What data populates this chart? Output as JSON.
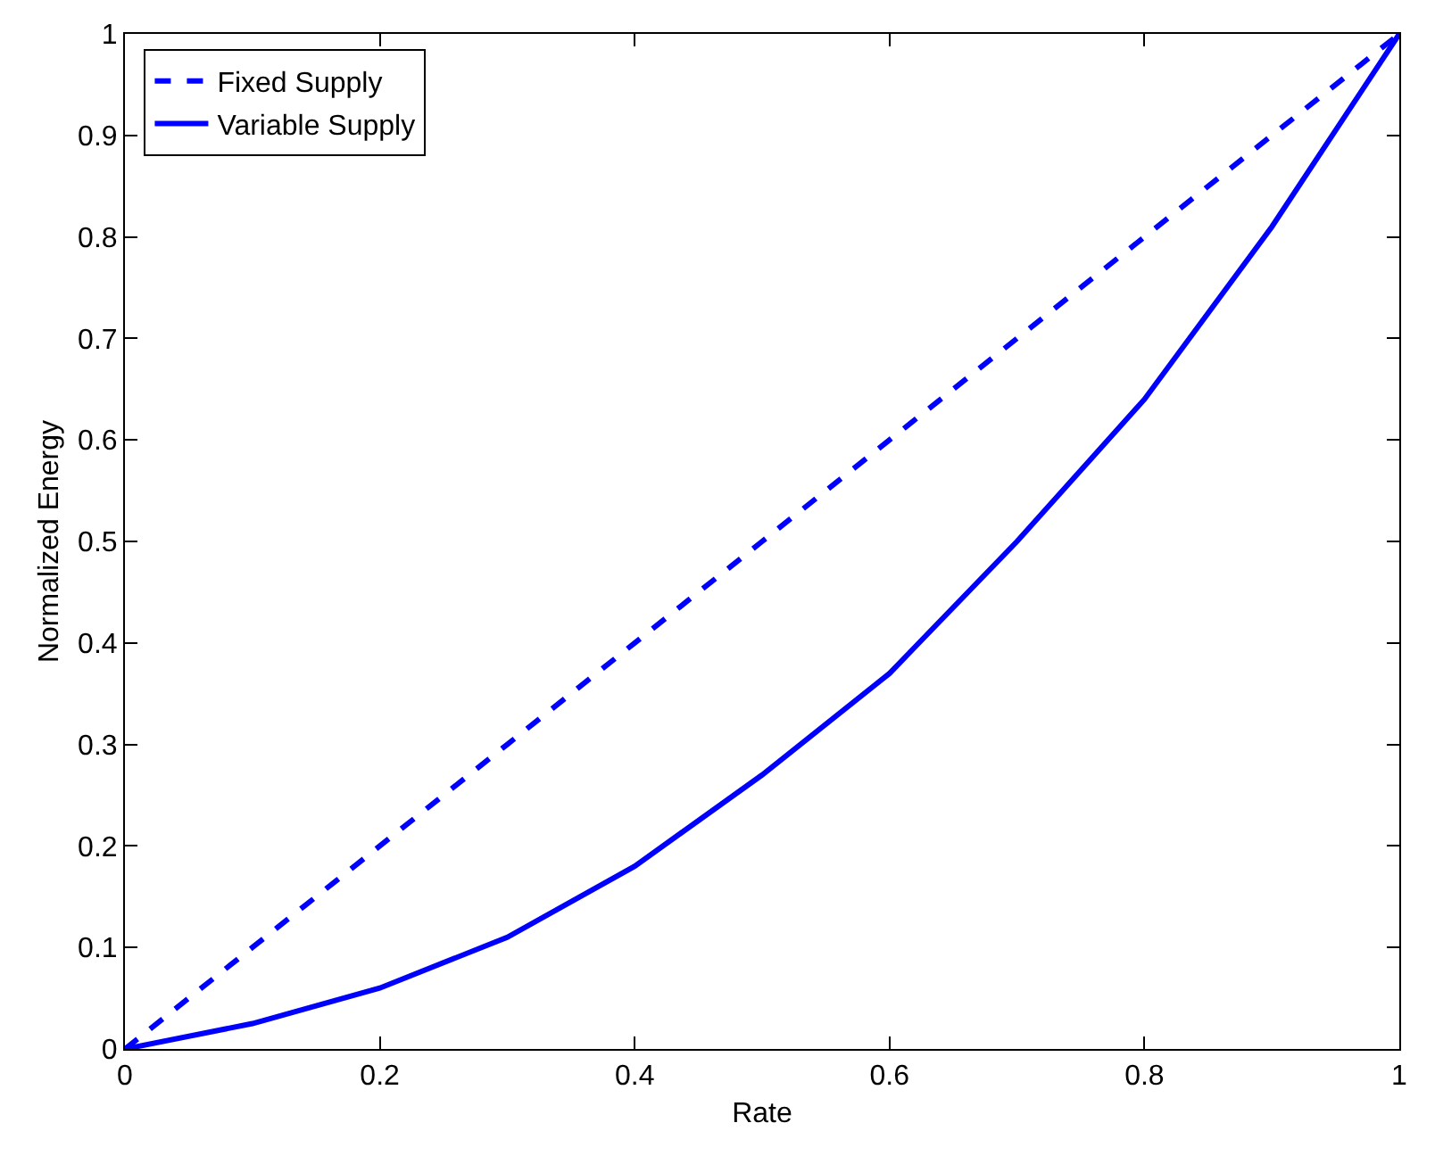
{
  "chart_data": {
    "type": "line",
    "xlabel": "Rate",
    "ylabel": "Normalized Energy",
    "x": [
      0,
      0.1,
      0.2,
      0.3,
      0.4,
      0.5,
      0.6,
      0.7,
      0.8,
      0.9,
      1
    ],
    "series": [
      {
        "name": "Fixed Supply",
        "color": "#0000ff",
        "line_style": "dashed",
        "values": [
          0,
          0.1,
          0.2,
          0.3,
          0.4,
          0.5,
          0.6,
          0.7,
          0.8,
          0.9,
          1
        ]
      },
      {
        "name": "Variable Supply",
        "color": "#0000ff",
        "line_style": "solid",
        "values": [
          0,
          0.025,
          0.06,
          0.11,
          0.18,
          0.27,
          0.37,
          0.5,
          0.64,
          0.81,
          1
        ]
      }
    ],
    "xlim": [
      0,
      1
    ],
    "xticks": [
      0,
      0.2,
      0.4,
      0.6,
      0.8,
      1
    ],
    "ylim": [
      0,
      1
    ],
    "yticks": [
      0,
      0.1,
      0.2,
      0.3,
      0.4,
      0.5,
      0.6,
      0.7,
      0.8,
      0.9,
      1
    ],
    "grid": false,
    "legend": "top left"
  }
}
